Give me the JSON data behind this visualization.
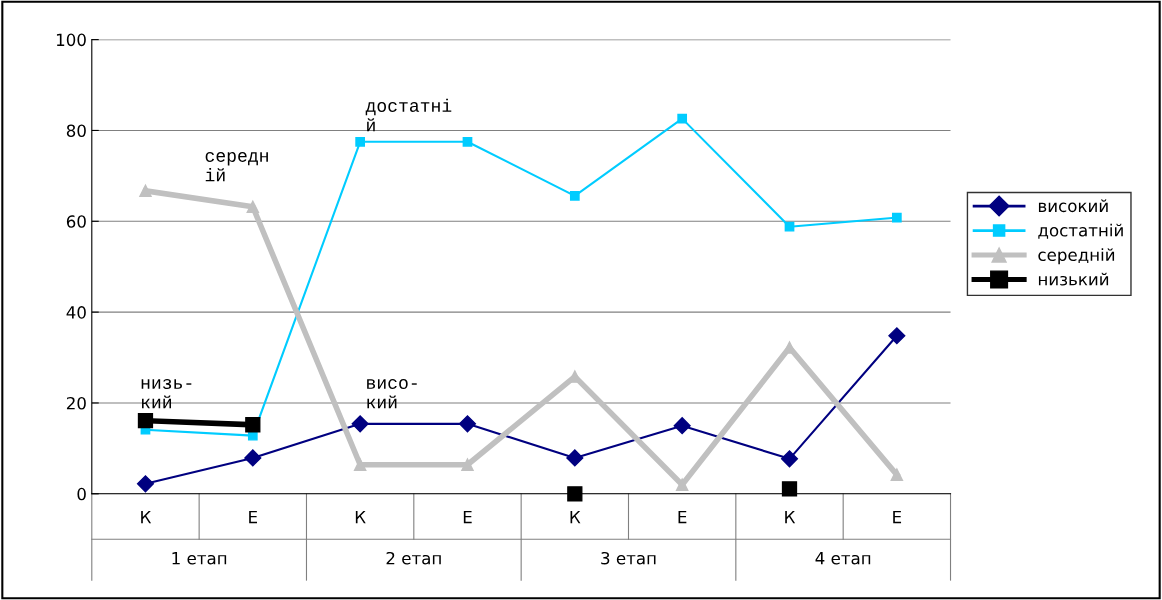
{
  "chart_data": {
    "type": "line",
    "categories": [
      "К",
      "Е",
      "К",
      "Е",
      "К",
      "Е",
      "К",
      "Е"
    ],
    "series": [
      {
        "name": "високий",
        "color": "#000080",
        "marker": "diamond",
        "values": [
          2.2,
          7.9,
          15.4,
          15.4,
          7.9,
          15.0,
          7.7,
          34.8
        ]
      },
      {
        "name": "достатній",
        "color": "#00ccff",
        "marker": "square",
        "values": [
          14.1,
          12.8,
          77.5,
          77.5,
          65.6,
          82.6,
          58.8,
          60.8
        ]
      },
      {
        "name": "середній",
        "color": "#c0c0c0",
        "marker": "triangle",
        "values": [
          66.7,
          63.2,
          6.4,
          6.4,
          25.8,
          2.0,
          32.2,
          4.2
        ]
      },
      {
        "name": "низький",
        "color": "#000000",
        "marker": "square",
        "values": [
          16.1,
          15.2,
          null,
          null,
          0.0,
          null,
          1.1,
          null
        ]
      }
    ],
    "ylim": [
      0,
      100
    ],
    "yticks": [
      0,
      20,
      40,
      60,
      80,
      100
    ],
    "grid": "y",
    "legend": "right",
    "annotations": [
      "1 етап",
      "2 етап",
      "3 етап",
      "4 етап",
      "середн\nій",
      "достатні\nй",
      "низь-\nкий",
      "висо-\nкий"
    ]
  }
}
